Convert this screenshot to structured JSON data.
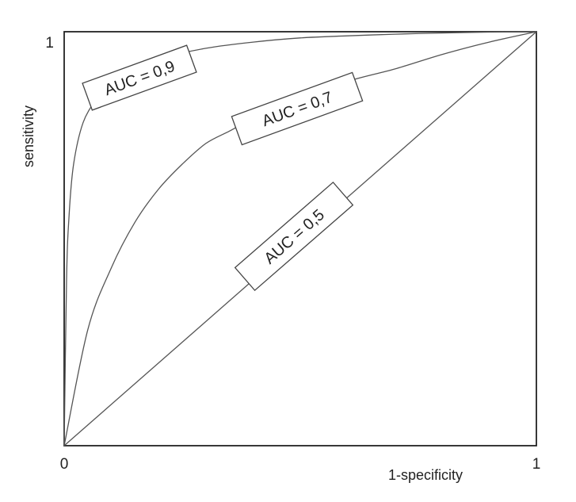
{
  "chart_data": {
    "type": "line",
    "xlabel": "1-specificity",
    "ylabel": "sensitivity",
    "xlim": [
      0,
      1
    ],
    "ylim": [
      0,
      1
    ],
    "x_ticks": [
      "0",
      "1"
    ],
    "y_ticks": [
      "1"
    ],
    "grid": false,
    "series": [
      {
        "name": "AUC = 0,9",
        "label": "AUC = 0,9",
        "x": [
          0,
          0.005,
          0.01,
          0.02,
          0.04,
          0.07,
          0.1,
          0.15,
          0.2,
          0.3,
          0.4,
          0.5,
          0.6,
          0.7,
          0.8,
          0.9,
          1
        ],
        "y": [
          0,
          0.4,
          0.55,
          0.68,
          0.78,
          0.84,
          0.88,
          0.915,
          0.935,
          0.96,
          0.975,
          0.985,
          0.99,
          0.994,
          0.997,
          0.999,
          1
        ]
      },
      {
        "name": "AUC = 0,7",
        "label": "AUC = 0,7",
        "x": [
          0,
          0.05,
          0.1,
          0.15,
          0.2,
          0.25,
          0.3,
          0.35,
          0.4,
          0.5,
          0.6,
          0.7,
          0.8,
          0.9,
          1
        ],
        "y": [
          0,
          0.28,
          0.43,
          0.54,
          0.62,
          0.68,
          0.73,
          0.76,
          0.79,
          0.84,
          0.88,
          0.91,
          0.945,
          0.975,
          1
        ]
      },
      {
        "name": "AUC = 0,5",
        "label": "AUC = 0,5",
        "x": [
          0,
          1
        ],
        "y": [
          0,
          1
        ]
      }
    ],
    "colors": {
      "frame": "#222222",
      "curve": "#555555"
    }
  }
}
